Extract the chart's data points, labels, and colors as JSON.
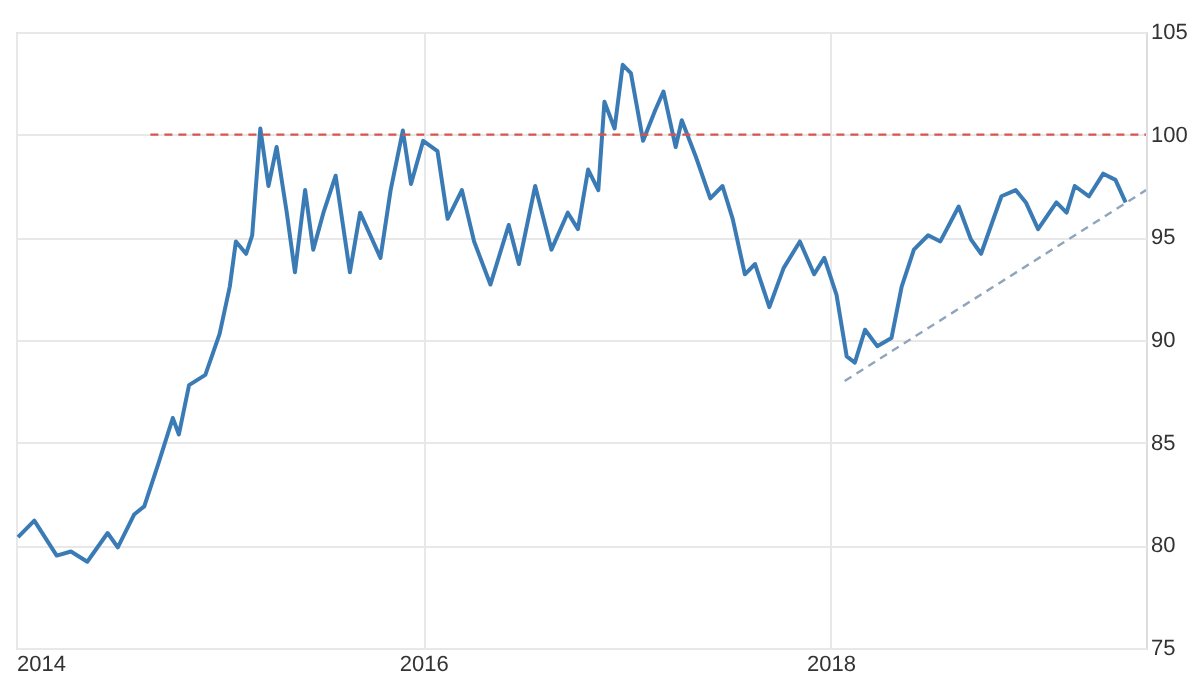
{
  "chart_data": {
    "type": "line",
    "xlim": [
      2014,
      2019.55
    ],
    "xticks": [
      2014,
      2016,
      2018
    ],
    "ylim": [
      75,
      105
    ],
    "yticks": [
      75,
      80,
      85,
      90,
      95,
      100,
      105
    ],
    "grid": true,
    "series": [
      {
        "color": "#3b7bb5",
        "line_style": "solid",
        "x": [
          2014.01,
          2014.09,
          2014.2,
          2014.27,
          2014.35,
          2014.45,
          2014.5,
          2014.58,
          2014.63,
          2014.7,
          2014.77,
          2014.8,
          2014.85,
          2014.93,
          2015.0,
          2015.05,
          2015.08,
          2015.13,
          2015.16,
          2015.2,
          2015.24,
          2015.28,
          2015.33,
          2015.37,
          2015.42,
          2015.46,
          2015.51,
          2015.57,
          2015.64,
          2015.69,
          2015.79,
          2015.84,
          2015.9,
          2015.94,
          2016.0,
          2016.07,
          2016.12,
          2016.19,
          2016.25,
          2016.33,
          2016.42,
          2016.47,
          2016.55,
          2016.63,
          2016.71,
          2016.76,
          2016.81,
          2016.86,
          2016.89,
          2016.94,
          2016.98,
          2017.02,
          2017.08,
          2017.14,
          2017.18,
          2017.24,
          2017.27,
          2017.34,
          2017.41,
          2017.47,
          2017.52,
          2017.58,
          2017.63,
          2017.7,
          2017.77,
          2017.85,
          2017.92,
          2017.97,
          2018.03,
          2018.08,
          2018.12,
          2018.17,
          2018.23,
          2018.3,
          2018.35,
          2018.41,
          2018.48,
          2018.54,
          2018.63,
          2018.69,
          2018.74,
          2018.84,
          2018.91,
          2018.96,
          2019.02,
          2019.11,
          2019.16,
          2019.2,
          2019.27,
          2019.34,
          2019.4,
          2019.45
        ],
        "values": [
          80.4,
          81.2,
          79.5,
          79.7,
          79.2,
          80.6,
          79.9,
          81.5,
          81.9,
          84.0,
          86.2,
          85.4,
          87.8,
          88.3,
          90.3,
          92.6,
          94.8,
          94.2,
          95.1,
          100.3,
          97.5,
          99.4,
          96.2,
          93.3,
          97.3,
          94.4,
          96.2,
          98.0,
          93.3,
          96.2,
          94.0,
          97.3,
          100.2,
          97.6,
          99.7,
          99.2,
          95.9,
          97.3,
          94.8,
          92.7,
          95.6,
          93.7,
          97.5,
          94.4,
          96.2,
          95.4,
          98.3,
          97.3,
          101.6,
          100.3,
          103.4,
          103.0,
          99.7,
          101.2,
          102.1,
          99.4,
          100.7,
          98.9,
          96.9,
          97.5,
          95.9,
          93.2,
          93.7,
          91.6,
          93.5,
          94.8,
          93.2,
          94.0,
          92.2,
          89.2,
          88.9,
          90.5,
          89.7,
          90.1,
          92.6,
          94.4,
          95.1,
          94.8,
          96.5,
          94.9,
          94.2,
          97.0,
          97.3,
          96.7,
          95.4,
          96.7,
          96.2,
          97.5,
          97.0,
          98.1,
          97.8,
          96.7
        ]
      },
      {
        "color": "#d9534f",
        "line_style": "dashed",
        "x": [
          2014.66,
          2019.55
        ],
        "values": [
          100,
          100
        ]
      },
      {
        "color": "#8fa5bd",
        "line_style": "dashed",
        "x": [
          2018.07,
          2019.55
        ],
        "values": [
          88.0,
          97.3
        ]
      }
    ]
  }
}
